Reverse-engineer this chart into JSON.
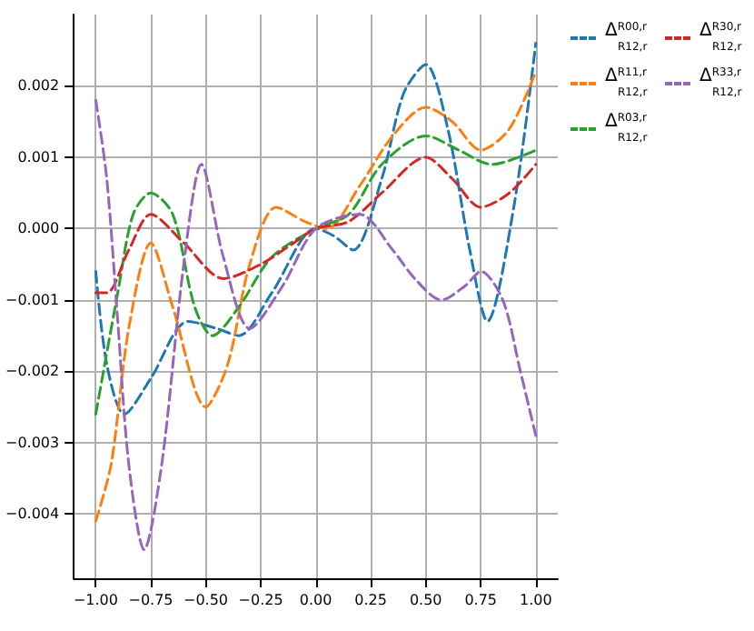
{
  "chart_data": {
    "type": "line",
    "line_style": "dashed",
    "marker": "none",
    "grid": true,
    "legend": "right",
    "xlim": [
      -1.1,
      1.1
    ],
    "ylim": [
      -0.0049,
      0.003
    ],
    "xticks": [
      {
        "value": -1,
        "label": "−1.00"
      },
      {
        "value": -0.75,
        "label": "−0.75"
      },
      {
        "value": -0.5,
        "label": "−0.50"
      },
      {
        "value": -0.25,
        "label": "−0.25"
      },
      {
        "value": 0,
        "label": "0.00"
      },
      {
        "value": 0.25,
        "label": "0.25"
      },
      {
        "value": 0.5,
        "label": "0.50"
      },
      {
        "value": 0.75,
        "label": "0.75"
      },
      {
        "value": 1,
        "label": "1.00"
      }
    ],
    "yticks": [
      {
        "value": -0.004,
        "label": "−0.004"
      },
      {
        "value": -0.003,
        "label": "−0.003"
      },
      {
        "value": -0.002,
        "label": "−0.002"
      },
      {
        "value": -0.001,
        "label": "−0.001"
      },
      {
        "value": 0,
        "label": "0.000"
      },
      0.001,
      0.002
    ],
    "series": [
      {
        "name": "Δ$^{R00,r}$$_{R12,r}$",
        "color": "#1f77b4",
        "x": [
          -1,
          -0.95,
          -0.87,
          -0.75,
          -0.58,
          -0.45,
          -0.35,
          -0.2,
          0,
          0.08,
          0.17,
          0.3,
          0.4,
          0.5,
          0.6,
          0.7,
          0.78,
          0.9,
          1
        ],
        "values": [
          -0.0006,
          -0.0019,
          -0.0026,
          -0.0021,
          -0.0013,
          -0.0014,
          -0.0015,
          -0.0009,
          0.0,
          -0.0001,
          -0.0003,
          0.0007,
          0.0019,
          0.0023,
          0.0014,
          -0.0003,
          -0.0013,
          0.0003,
          0.0026
        ]
      },
      {
        "name": "Δ$^{R11,r}$$_{R12,r}$",
        "color": "#ff7f0e",
        "x": [
          -1,
          -0.93,
          -0.85,
          -0.75,
          -0.65,
          -0.5,
          -0.4,
          -0.3,
          -0.18,
          -0.05,
          0.05,
          0.2,
          0.35,
          0.5,
          0.62,
          0.75,
          0.88,
          1
        ],
        "values": [
          -0.0041,
          -0.0033,
          -0.0014,
          -0.0002,
          -0.0011,
          -0.0025,
          -0.0019,
          -0.0005,
          0.0003,
          0.0001,
          0.0,
          0.0006,
          0.0013,
          0.0017,
          0.0015,
          0.0011,
          0.0014,
          0.0022
        ]
      },
      {
        "name": "Δ$^{R03,r}$$_{R12,r}$",
        "color": "#2ca02c",
        "x": [
          -1,
          -0.9,
          -0.83,
          -0.75,
          -0.65,
          -0.55,
          -0.47,
          -0.35,
          -0.2,
          0,
          0.15,
          0.3,
          0.5,
          0.65,
          0.8,
          1
        ],
        "values": [
          -0.0026,
          -0.0009,
          0.0002,
          0.0005,
          0.0002,
          -0.0011,
          -0.0015,
          -0.0011,
          -0.0004,
          0.0,
          0.0002,
          0.0009,
          0.0013,
          0.0011,
          0.0009,
          0.0011
        ]
      },
      {
        "name": "Δ$^{R30,r}$$_{R12,r}$",
        "color": "#d62728",
        "x": [
          -1,
          -0.95,
          -0.85,
          -0.75,
          -0.6,
          -0.42,
          -0.25,
          -0.1,
          0,
          0.15,
          0.3,
          0.5,
          0.62,
          0.75,
          0.88,
          1
        ],
        "values": [
          -0.0009,
          -0.0009,
          -0.0003,
          0.0002,
          -0.0002,
          -0.0007,
          -0.0005,
          -0.0002,
          0.0,
          0.0001,
          0.0005,
          0.001,
          0.0007,
          0.0003,
          0.0005,
          0.0009
        ]
      },
      {
        "name": "Δ$^{R33,r}$$_{R12,r}$",
        "color": "#9467bd",
        "x": [
          -1,
          -0.95,
          -0.9,
          -0.85,
          -0.78,
          -0.7,
          -0.6,
          -0.52,
          -0.42,
          -0.3,
          -0.15,
          0,
          0.2,
          0.35,
          0.45,
          0.57,
          0.68,
          0.75,
          0.85,
          0.93,
          1
        ],
        "values": [
          0.0018,
          0.0007,
          -0.0013,
          -0.0033,
          -0.0045,
          -0.0033,
          -0.0005,
          0.0009,
          -0.0004,
          -0.0014,
          -0.0008,
          0.0,
          0.0002,
          -0.0003,
          -0.0007,
          -0.001,
          -0.0008,
          -0.0006,
          -0.001,
          -0.002,
          -0.0029
        ]
      }
    ]
  }
}
